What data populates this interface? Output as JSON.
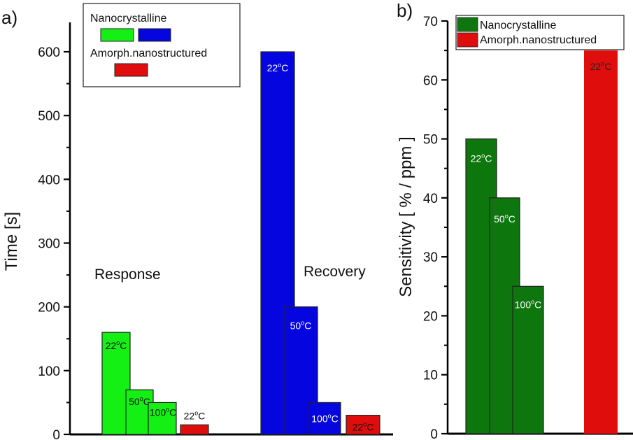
{
  "chart_data": [
    {
      "panel_label": "a)",
      "type": "bar",
      "title": "",
      "xlabel": "",
      "ylabel": "Time  [s]",
      "ylim": [
        0,
        650
      ],
      "yticks": [
        0,
        100,
        200,
        300,
        400,
        500,
        600
      ],
      "ytick_labels": [
        "0",
        "100",
        "200",
        "300",
        "400",
        "500",
        "600"
      ],
      "minor_ticks": true,
      "grid": false,
      "groups": [
        {
          "name": "Response",
          "bars": [
            {
              "series": "Nanocrystalline",
              "temperature": "22°C",
              "value": 160,
              "color": "#14f014"
            },
            {
              "series": "Nanocrystalline",
              "temperature": "50°C",
              "value": 70,
              "color": "#14f014"
            },
            {
              "series": "Nanocrystalline",
              "temperature": "100°C",
              "value": 50,
              "color": "#14f014"
            },
            {
              "series": "Amorph.nanostructured",
              "temperature": "22°C",
              "value": 15,
              "color": "#e00d0d"
            }
          ]
        },
        {
          "name": "Recovery",
          "bars": [
            {
              "series": "Nanocrystalline",
              "temperature": "22°C",
              "value": 600,
              "color": "#0505e0"
            },
            {
              "series": "Nanocrystalline",
              "temperature": "50°C",
              "value": 200,
              "color": "#0505e0"
            },
            {
              "series": "Nanocrystalline",
              "temperature": "100°C",
              "value": 50,
              "color": "#0505e0"
            },
            {
              "series": "Amorph.nanostructured",
              "temperature": "22°C",
              "value": 30,
              "color": "#e00d0d"
            }
          ]
        }
      ],
      "legend": {
        "placement": "top-left",
        "entries": [
          {
            "label": "Nanocrystalline",
            "colors": [
              "#14f014",
              "#0505e0"
            ]
          },
          {
            "label": "Amorph.nanostructured",
            "colors": [
              "#e00d0d"
            ]
          }
        ]
      }
    },
    {
      "panel_label": "b)",
      "type": "bar",
      "title": "",
      "xlabel": "",
      "ylabel": "Sensitivity   [ % / ppm ]",
      "ylim": [
        0,
        70
      ],
      "yticks": [
        0,
        10,
        20,
        30,
        40,
        50,
        60,
        70
      ],
      "ytick_labels": [
        "0",
        "10",
        "20",
        "30",
        "40",
        "50",
        "60",
        "70"
      ],
      "minor_ticks": true,
      "grid": false,
      "bars": [
        {
          "series": "Nanocrystalline",
          "temperature": "22°C",
          "value": 50,
          "color": "#0d770d"
        },
        {
          "series": "Nanocrystalline",
          "temperature": "50°C",
          "value": 40,
          "color": "#0d770d"
        },
        {
          "series": "Nanocrystalline",
          "temperature": "100°C",
          "value": 25,
          "color": "#0d770d"
        },
        {
          "series": "Amorph.nanostructured",
          "temperature": "22°C",
          "value": 65,
          "color": "#e00d0d"
        }
      ],
      "legend": {
        "placement": "top",
        "entries": [
          {
            "label": "Nanocrystalline",
            "colors": [
              "#0d770d"
            ]
          },
          {
            "label": "Amorph.nanostructured",
            "colors": [
              "#e00d0d"
            ]
          }
        ]
      }
    }
  ]
}
